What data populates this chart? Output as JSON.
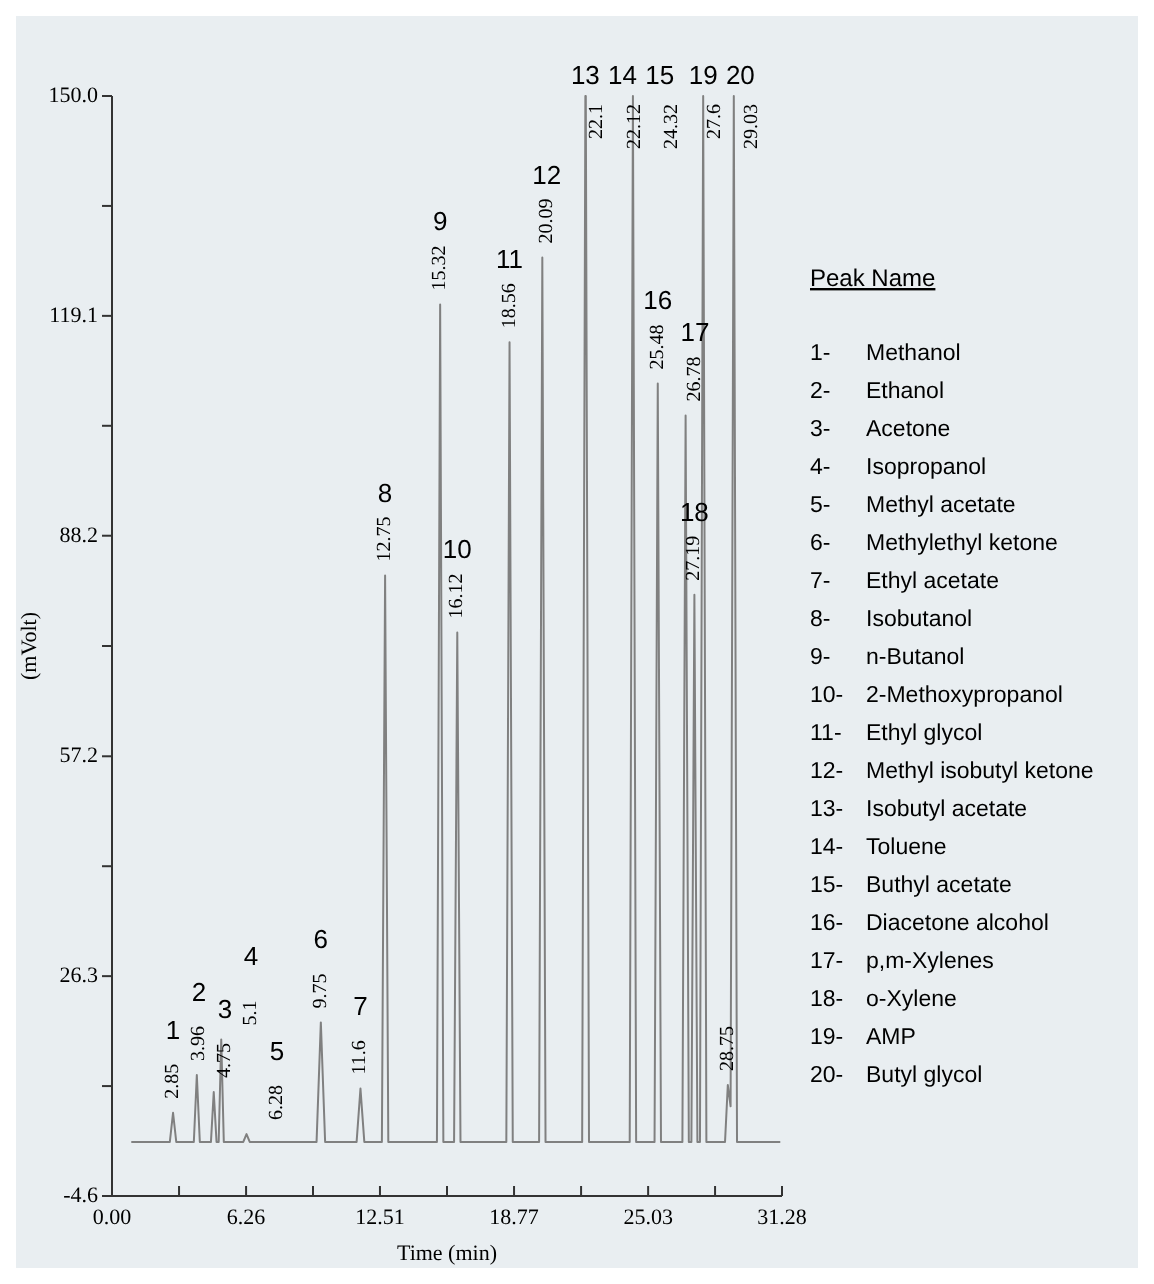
{
  "chart_data": {
    "type": "line",
    "xlabel": "Time (min)",
    "ylabel": "(mVolt)",
    "xlim": [
      0,
      31.28
    ],
    "ylim": [
      -4.6,
      150
    ],
    "xticks": [
      {
        "value": 0,
        "label": "0.00"
      },
      {
        "value": 3.13,
        "label": null
      },
      6.26,
      {
        "value": 9.385,
        "label": null
      },
      12.51,
      {
        "value": 15.64,
        "label": null
      },
      18.77,
      {
        "value": 21.9,
        "label": null
      },
      25.03,
      {
        "value": 28.155,
        "label": null
      },
      31.28
    ],
    "yticks": [
      -4.6,
      {
        "value": 10.85,
        "label": null
      },
      26.3,
      {
        "value": 41.75,
        "label": null
      },
      57.2,
      {
        "value": 72.7,
        "label": null
      },
      88.2,
      {
        "value": 103.65,
        "label": null
      },
      119.1,
      {
        "value": 134.55,
        "label": null
      },
      {
        "value": 150,
        "label": "150.0"
      }
    ],
    "x": [
      0.9,
      2.7,
      2.85,
      3.0,
      3.82,
      3.96,
      4.1,
      4.62,
      4.75,
      4.88,
      4.98,
      5.1,
      5.22,
      6.13,
      6.28,
      6.43,
      9.55,
      9.75,
      9.95,
      11.42,
      11.6,
      11.78,
      12.6,
      12.75,
      12.9,
      15.17,
      15.32,
      15.47,
      15.97,
      16.12,
      16.27,
      18.41,
      18.56,
      18.71,
      19.94,
      20.09,
      20.24,
      21.95,
      22.1,
      22.11,
      22.12,
      22.27,
      24.17,
      24.32,
      24.47,
      25.33,
      25.48,
      25.63,
      26.63,
      26.78,
      26.93,
      27.05,
      27.19,
      27.33,
      27.45,
      27.6,
      27.75,
      28.62,
      28.75,
      28.88,
      29.03,
      29.18,
      31.2
    ],
    "series": [
      {
        "color": "#808080",
        "values": [
          3,
          3,
          7.1,
          3,
          3,
          12.4,
          3,
          3,
          10,
          3,
          3,
          17.4,
          3,
          3,
          4.1,
          3,
          3,
          19.8,
          3,
          3,
          10.5,
          3,
          3,
          82.6,
          3,
          3,
          120.7,
          3,
          3,
          74.6,
          3,
          3,
          115.4,
          3,
          3,
          127.3,
          3,
          3,
          150,
          140,
          150,
          3,
          3,
          150,
          3,
          3,
          109.6,
          3,
          3,
          105.1,
          3,
          3,
          79.9,
          3,
          3,
          150,
          3,
          3,
          11,
          8,
          150,
          3,
          3
        ]
      }
    ],
    "annotations": [
      "Peak Name",
      "1- Methanol",
      "2- Ethanol",
      "3- Acetone",
      "4- Isopropanol",
      "5- Methyl acetate",
      "6- Methylethyl ketone",
      "7- Ethyl acetate",
      "8- Isobutanol",
      "9- n-Butanol",
      "10- 2-Methoxypropanol",
      "11- Ethyl glycol",
      "12- Methyl isobutyl ketone",
      "13- Isobutyl acetate",
      "14- Toluene",
      "15- Buthyl acetate",
      "16- Diacetone alcohol",
      "17- p,m-Xylenes",
      "18- o-Xylene",
      "19- AMP",
      "20- Butyl glycol",
      {
        "text": "1",
        "x": 2.85,
        "y": 7.1
      },
      {
        "text": "2.85",
        "x": 2.85,
        "y": 7.1
      },
      {
        "text": "2",
        "x": 3.96,
        "y": 12.4
      },
      {
        "text": "3.96",
        "x": 3.96,
        "y": 12.4
      },
      {
        "text": "3",
        "x": 4.75,
        "y": 10
      },
      {
        "text": "4.75",
        "x": 4.75,
        "y": 10
      },
      {
        "text": "4",
        "x": 5.1,
        "y": 17.4
      },
      {
        "text": "5.1",
        "x": 5.1,
        "y": 17.4
      },
      {
        "text": "5",
        "x": 6.28,
        "y": 4.1
      },
      {
        "text": "6.28",
        "x": 6.28,
        "y": 4.1
      },
      {
        "text": "6",
        "x": 9.75,
        "y": 19.8
      },
      {
        "text": "9.75",
        "x": 9.75,
        "y": 19.8
      },
      {
        "text": "7",
        "x": 11.6,
        "y": 10.5
      },
      {
        "text": "11.6",
        "x": 11.6,
        "y": 10.5
      },
      {
        "text": "8",
        "x": 12.75,
        "y": 82.6
      },
      {
        "text": "12.75",
        "x": 12.75,
        "y": 82.6
      },
      {
        "text": "9",
        "x": 15.32,
        "y": 120.7
      },
      {
        "text": "15.32",
        "x": 15.32,
        "y": 120.7
      },
      {
        "text": "10",
        "x": 16.12,
        "y": 74.6
      },
      {
        "text": "16.12",
        "x": 16.12,
        "y": 74.6
      },
      {
        "text": "11",
        "x": 18.56,
        "y": 115.4
      },
      {
        "text": "18.56",
        "x": 18.56,
        "y": 115.4
      },
      {
        "text": "12",
        "x": 20.09,
        "y": 127.3
      },
      {
        "text": "20.09",
        "x": 20.09,
        "y": 127.3
      },
      {
        "text": "13",
        "x": 22.1,
        "y": 150
      },
      {
        "text": "22.1",
        "x": 22.1,
        "y": 150
      },
      {
        "text": "14",
        "x": 22.12,
        "y": 150
      },
      {
        "text": "22.12",
        "x": 22.12,
        "y": 150
      },
      {
        "text": "15",
        "x": 24.32,
        "y": 150
      },
      {
        "text": "24.32",
        "x": 24.32,
        "y": 150
      },
      {
        "text": "16",
        "x": 25.48,
        "y": 109.6
      },
      {
        "text": "25.48",
        "x": 25.48,
        "y": 109.6
      },
      {
        "text": "17",
        "x": 26.78,
        "y": 105.1
      },
      {
        "text": "26.78",
        "x": 26.78,
        "y": 105.1
      },
      {
        "text": "18",
        "x": 27.19,
        "y": 79.9
      },
      {
        "text": "27.19",
        "x": 27.19,
        "y": 79.9
      },
      {
        "text": "19",
        "x": 27.6,
        "y": 150
      },
      {
        "text": "27.6",
        "x": 27.6,
        "y": 150
      },
      {
        "text": "28.75",
        "x": 28.75,
        "y": 11
      },
      {
        "text": "20",
        "x": 29.03,
        "y": 150
      },
      {
        "text": "29.03",
        "x": 29.03,
        "y": 150
      }
    ]
  }
}
